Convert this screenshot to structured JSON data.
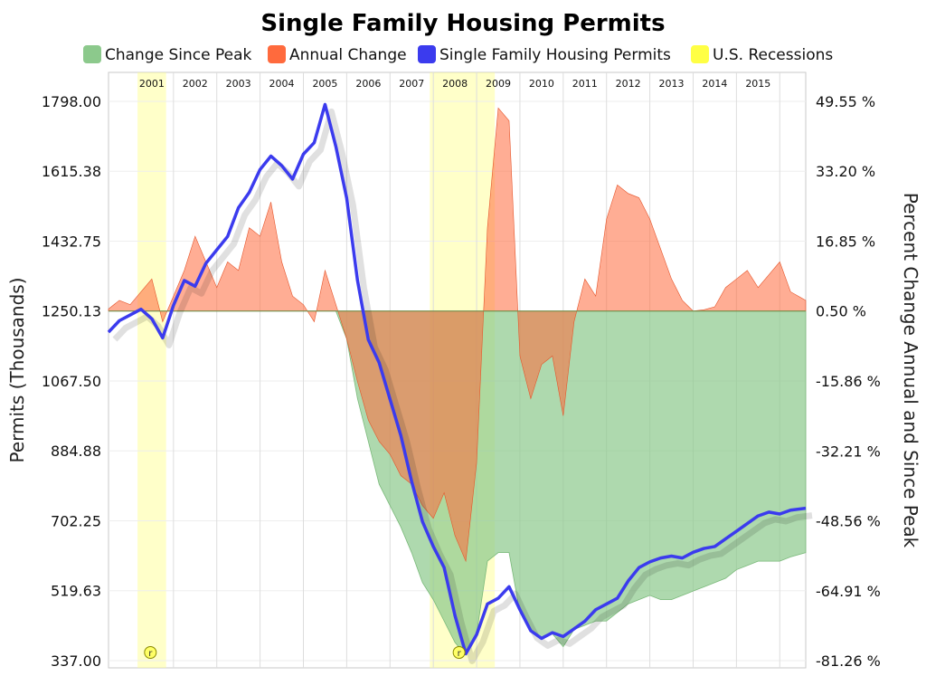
{
  "chart_data": {
    "type": "area",
    "title": "Single Family Housing Permits",
    "ylabel_left": "Permits (Thousands)",
    "ylabel_right": "Percent Change Annual and Since Peak",
    "ylim_left": [
      337.0,
      1798.0
    ],
    "yticks_left": [
      "1798.00",
      "1615.38",
      "1432.75",
      "1250.13",
      "1067.50",
      "884.88",
      "702.25",
      "519.63",
      "337.00"
    ],
    "ylim_right": [
      -81.26,
      49.55
    ],
    "yticks_right": [
      "49.55 %",
      "33.20 %",
      "16.85 %",
      "0.50 %",
      "-15.86 %",
      "-32.21 %",
      "-48.56 %",
      "-64.91 %",
      "-81.26 %"
    ],
    "xlim": [
      2000.5,
      2016.6
    ],
    "years": [
      "2001",
      "2002",
      "2003",
      "2004",
      "2005",
      "2006",
      "2007",
      "2008",
      "2009",
      "2010",
      "2011",
      "2012",
      "2013",
      "2014",
      "2015"
    ],
    "grid": true,
    "legend_position": "top",
    "recession_marker": "r",
    "recessions": [
      [
        2001.17,
        2001.83
      ],
      [
        2007.92,
        2009.42
      ]
    ],
    "series": [
      {
        "name": "Single Family Housing Permits",
        "color": "#3b3bee",
        "x": [
          2000.5,
          2000.75,
          2001.0,
          2001.25,
          2001.5,
          2001.75,
          2002.0,
          2002.25,
          2002.5,
          2002.75,
          2003.0,
          2003.25,
          2003.5,
          2003.75,
          2004.0,
          2004.25,
          2004.5,
          2004.75,
          2005.0,
          2005.25,
          2005.5,
          2005.75,
          2006.0,
          2006.25,
          2006.5,
          2006.75,
          2007.0,
          2007.25,
          2007.5,
          2007.75,
          2008.0,
          2008.25,
          2008.5,
          2008.75,
          2009.0,
          2009.25,
          2009.5,
          2009.75,
          2010.0,
          2010.25,
          2010.5,
          2010.75,
          2011.0,
          2011.25,
          2011.5,
          2011.75,
          2012.0,
          2012.25,
          2012.5,
          2012.75,
          2013.0,
          2013.25,
          2013.5,
          2013.75,
          2014.0,
          2014.25,
          2014.5,
          2014.75,
          2015.0,
          2015.25,
          2015.5,
          2015.75,
          2016.0,
          2016.25,
          2016.6
        ],
        "values": [
          1195,
          1225,
          1240,
          1255,
          1230,
          1180,
          1265,
          1330,
          1315,
          1375,
          1410,
          1445,
          1520,
          1560,
          1620,
          1655,
          1630,
          1595,
          1660,
          1690,
          1790,
          1680,
          1545,
          1330,
          1175,
          1115,
          1020,
          925,
          805,
          700,
          635,
          580,
          455,
          355,
          405,
          485,
          500,
          530,
          470,
          415,
          395,
          410,
          400,
          420,
          440,
          470,
          485,
          500,
          545,
          580,
          595,
          605,
          610,
          605,
          620,
          630,
          635,
          655,
          675,
          695,
          715,
          725,
          720,
          730,
          735
        ]
      },
      {
        "name": "Annual Change",
        "color": "#ff6a3d",
        "x": [
          2000.5,
          2000.75,
          2001.0,
          2001.25,
          2001.5,
          2001.75,
          2002.0,
          2002.25,
          2002.5,
          2002.75,
          2003.0,
          2003.25,
          2003.5,
          2003.75,
          2004.0,
          2004.25,
          2004.5,
          2004.75,
          2005.0,
          2005.25,
          2005.5,
          2005.75,
          2006.0,
          2006.25,
          2006.5,
          2006.75,
          2007.0,
          2007.25,
          2007.5,
          2007.75,
          2008.0,
          2008.25,
          2008.5,
          2008.75,
          2009.0,
          2009.25,
          2009.5,
          2009.75,
          2010.0,
          2010.25,
          2010.5,
          2010.75,
          2011.0,
          2011.25,
          2011.5,
          2011.75,
          2012.0,
          2012.25,
          2012.5,
          2012.75,
          2013.0,
          2013.25,
          2013.5,
          2013.75,
          2014.0,
          2014.25,
          2014.5,
          2014.75,
          2015.0,
          2015.25,
          2015.5,
          2015.75,
          2016.0,
          2016.25,
          2016.6
        ],
        "values": [
          1,
          3,
          2,
          5,
          8,
          -2,
          4,
          10,
          18,
          12,
          6,
          12,
          10,
          20,
          18,
          26,
          12,
          4,
          2,
          -2,
          10,
          2,
          -6,
          -16,
          -25,
          -30,
          -33,
          -38,
          -40,
          -45,
          -48,
          -42,
          -52,
          -58,
          -35,
          20,
          48,
          45,
          -10,
          -20,
          -12,
          -10,
          -24,
          -2,
          8,
          4,
          22,
          30,
          28,
          27,
          22,
          15,
          8,
          3,
          0.5,
          0.8,
          1.5,
          6,
          8,
          10,
          6,
          9,
          12,
          5,
          3
        ]
      },
      {
        "name": "Change Since Peak",
        "color": "#8cc98c",
        "x": [
          2000.5,
          2000.75,
          2001.0,
          2001.25,
          2001.5,
          2001.75,
          2002.0,
          2002.25,
          2002.5,
          2002.75,
          2003.0,
          2003.25,
          2003.5,
          2003.75,
          2004.0,
          2004.25,
          2004.5,
          2004.75,
          2005.0,
          2005.25,
          2005.5,
          2005.75,
          2006.0,
          2006.25,
          2006.5,
          2006.75,
          2007.0,
          2007.25,
          2007.5,
          2007.75,
          2008.0,
          2008.25,
          2008.5,
          2008.75,
          2009.0,
          2009.25,
          2009.5,
          2009.75,
          2010.0,
          2010.25,
          2010.5,
          2010.75,
          2011.0,
          2011.25,
          2011.5,
          2011.75,
          2012.0,
          2012.25,
          2012.5,
          2012.75,
          2013.0,
          2013.25,
          2013.5,
          2013.75,
          2014.0,
          2014.25,
          2014.5,
          2014.75,
          2015.0,
          2015.25,
          2015.5,
          2015.75,
          2016.0,
          2016.25,
          2016.6
        ],
        "values": [
          0.5,
          0.5,
          0.5,
          0.5,
          0.5,
          0.5,
          0.5,
          0.5,
          0.5,
          0.5,
          0.5,
          0.5,
          0.5,
          0.5,
          0.5,
          0.5,
          0.5,
          0.5,
          0.5,
          0.5,
          0.5,
          0.5,
          -6,
          -20,
          -30,
          -40,
          -45,
          -50,
          -56,
          -63,
          -67,
          -72,
          -77,
          -80,
          -75,
          -58,
          -56,
          -56,
          -70,
          -74,
          -76,
          -75,
          -78,
          -74,
          -73,
          -72,
          -72,
          -70,
          -68,
          -67,
          -66,
          -67,
          -67,
          -66,
          -65,
          -64,
          -63,
          -62,
          -60,
          -59,
          -58,
          -58,
          -58,
          -57,
          -56
        ]
      }
    ]
  },
  "legend": [
    {
      "label": "Change Since Peak",
      "color": "#8cc98c"
    },
    {
      "label": "Annual Change",
      "color": "#ff6a3d"
    },
    {
      "label": "Single Family Housing Permits",
      "color": "#3b3bee"
    },
    {
      "label": "U.S. Recessions",
      "color": "#ffff44"
    }
  ]
}
